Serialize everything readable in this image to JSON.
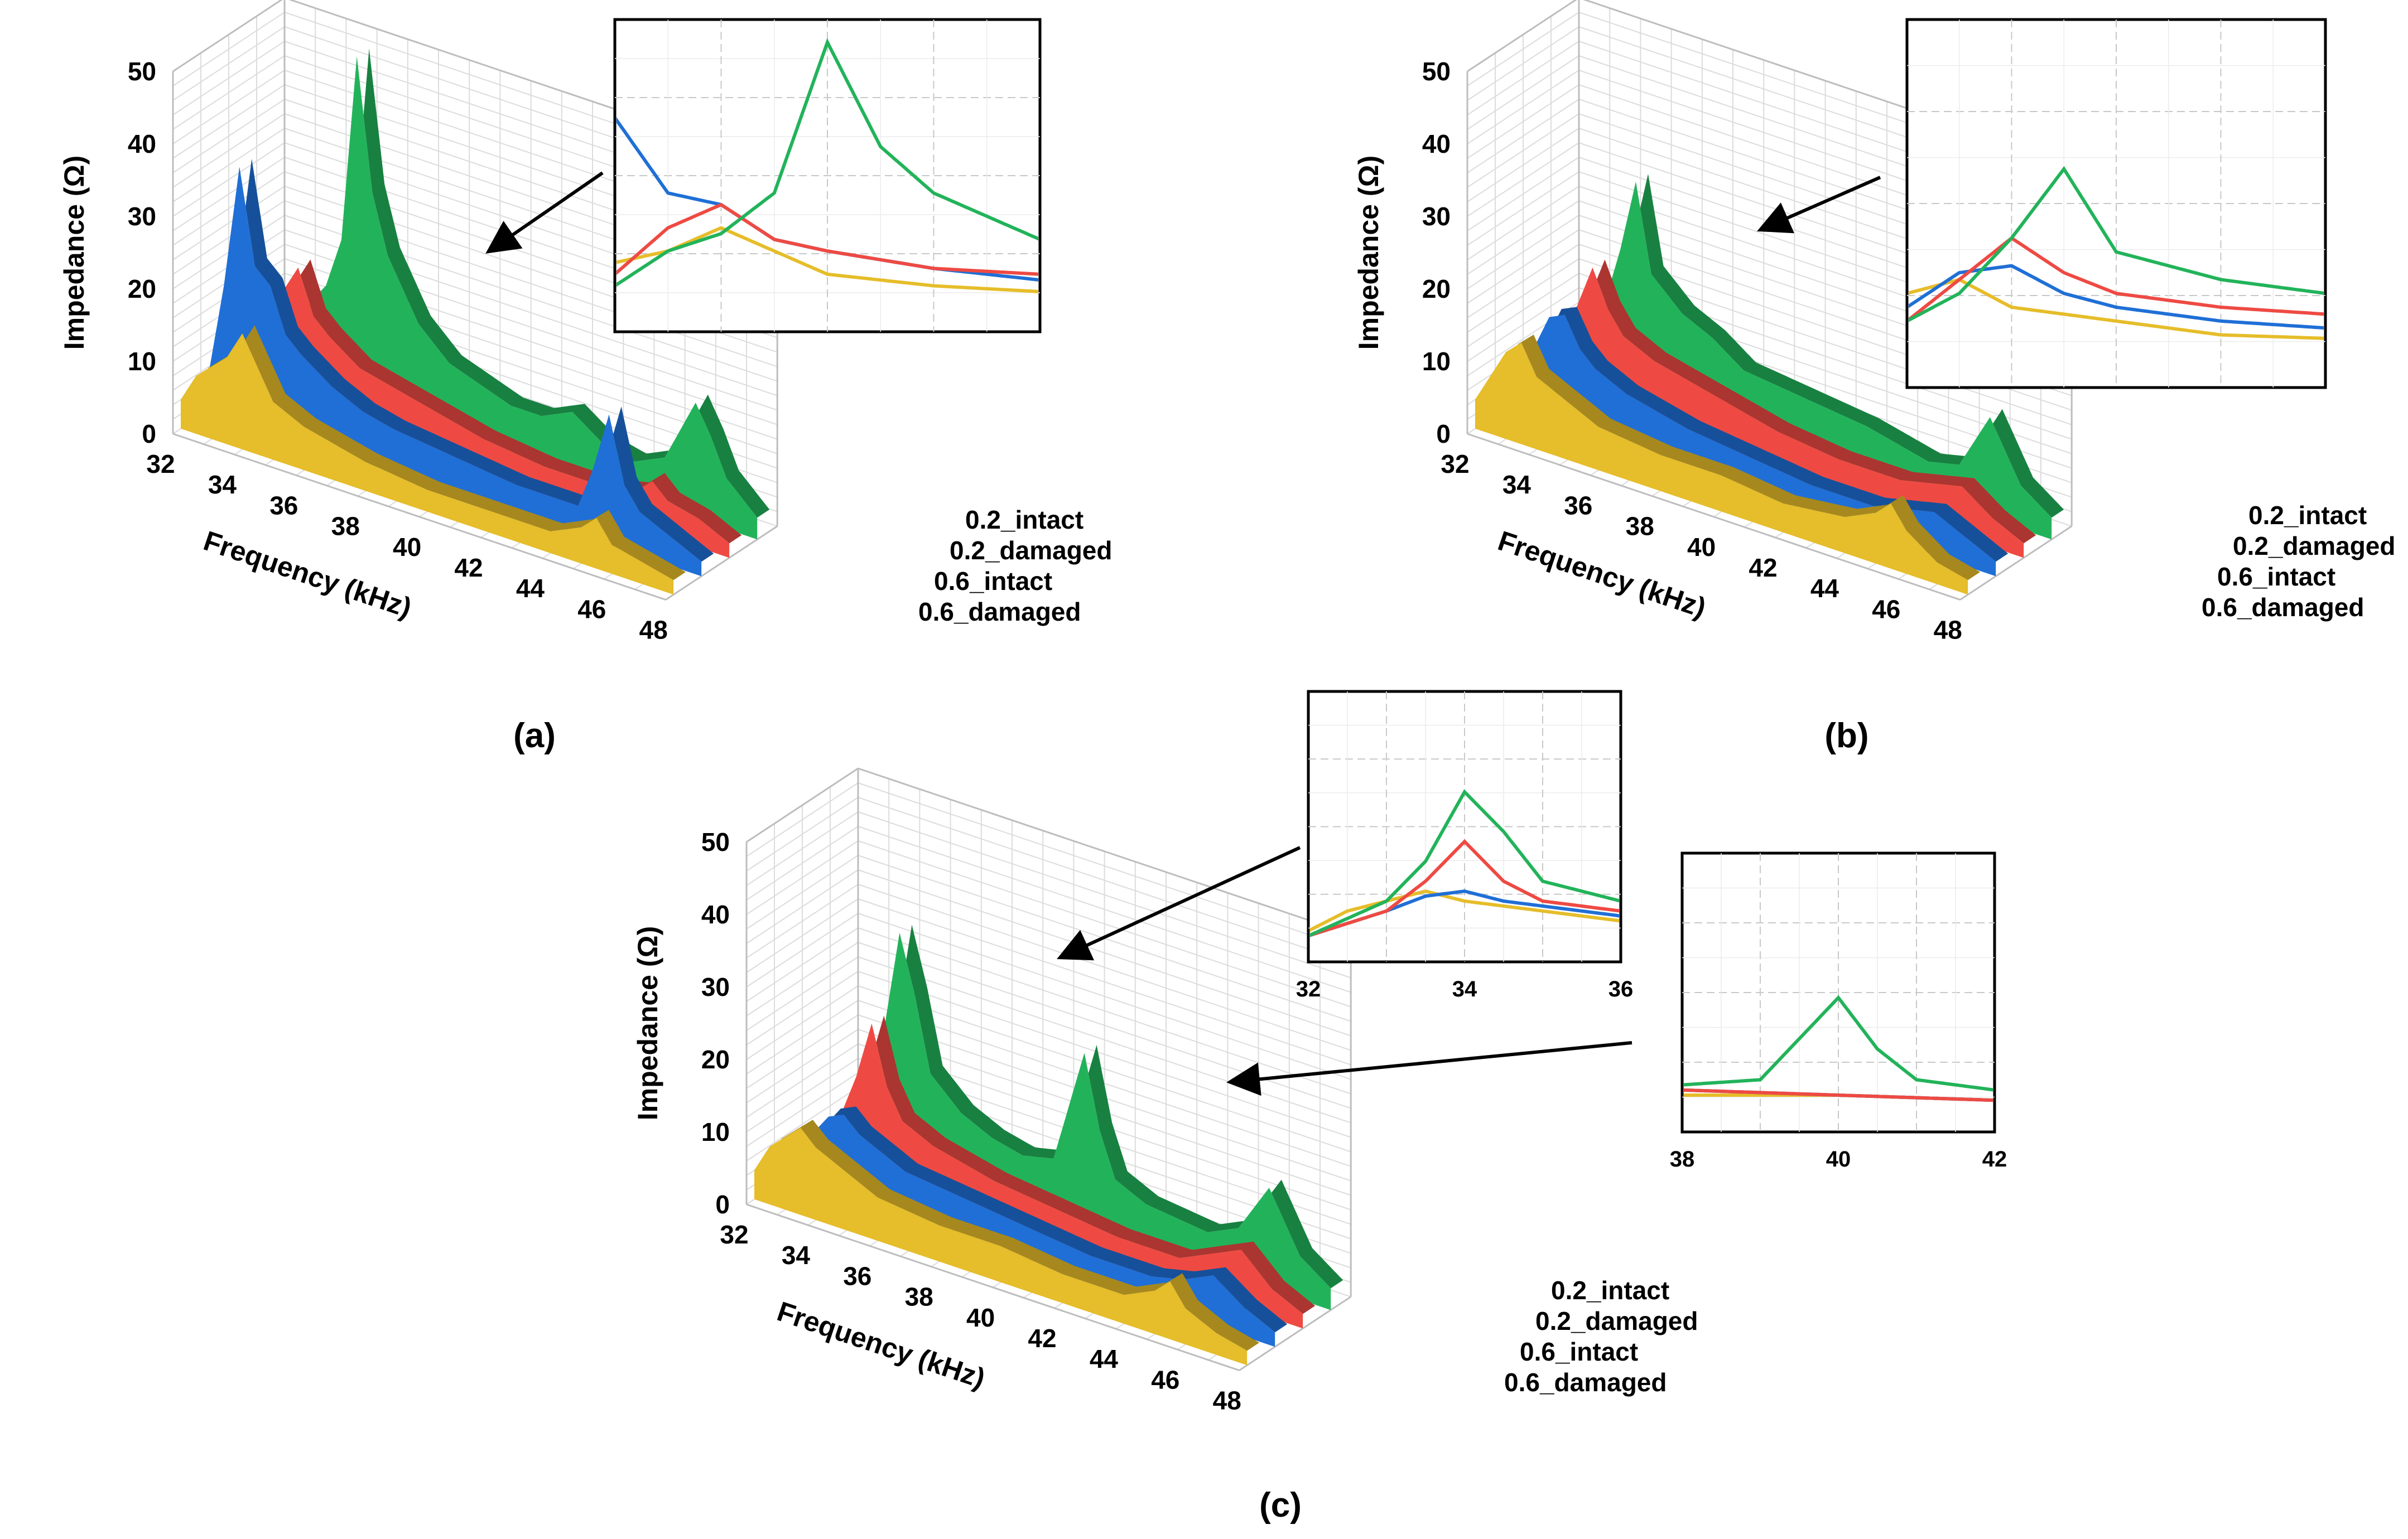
{
  "chart_data": [
    {
      "id": "a",
      "type": "area-3d",
      "panel_label": "(a)",
      "xlabel": "Frequency (kHz)",
      "ylabel": "Impedance (Ω)",
      "xlim": [
        32,
        48
      ],
      "ylim": [
        0,
        50
      ],
      "x_ticks": [
        "32",
        "34",
        "36",
        "38",
        "40",
        "42",
        "44",
        "46",
        "48"
      ],
      "y_ticks": [
        "0",
        "10",
        "20",
        "30",
        "40",
        "50"
      ],
      "depth_labels": [
        "0.2_intact",
        "0.2_damaged",
        "0.6_intact",
        "0.6_damaged"
      ],
      "series": [
        {
          "name": "0.2_intact",
          "color": "#22b35a",
          "x": [
            32,
            33,
            33.5,
            34,
            34.5,
            35,
            35.5,
            36,
            37,
            38,
            40,
            41,
            42,
            43,
            44,
            45,
            46,
            46.5,
            47,
            48
          ],
          "values": [
            3,
            6,
            12,
            15,
            22,
            48,
            30,
            22,
            14,
            10,
            7,
            7,
            9,
            6,
            5,
            7,
            16,
            12,
            7,
            3
          ]
        },
        {
          "name": "0.2_damaged",
          "color": "#ee4a43",
          "x": [
            32,
            33,
            33.5,
            34,
            34.5,
            35,
            36,
            37,
            38,
            40,
            42,
            44,
            45,
            45.5,
            46,
            47,
            48
          ],
          "values": [
            3,
            8,
            16,
            20,
            14,
            12,
            9,
            8,
            7,
            5,
            4,
            4,
            5,
            7,
            5,
            4,
            2
          ]
        },
        {
          "name": "0.6_intact",
          "color": "#1f6fd6",
          "x": [
            32,
            32.5,
            33,
            33.5,
            34,
            34.5,
            35,
            36,
            37,
            38,
            40,
            42,
            44,
            44.5,
            45,
            45.5,
            46,
            47,
            48
          ],
          "values": [
            5,
            18,
            35,
            22,
            20,
            14,
            12,
            9,
            7,
            6,
            5,
            4,
            4,
            10,
            18,
            9,
            6,
            4,
            2
          ]
        },
        {
          "name": "0.6_damaged",
          "color": "#e6bd2a",
          "x": [
            32,
            32.5,
            33,
            33.5,
            34,
            35,
            36,
            37,
            38,
            40,
            42,
            44,
            45,
            45.5,
            46,
            47,
            48
          ],
          "values": [
            4,
            8,
            10,
            12,
            16,
            8,
            6,
            5,
            4,
            3,
            3,
            3,
            5,
            7,
            4,
            3,
            2
          ]
        }
      ],
      "inset": {
        "xlim": [
          33,
          37
        ],
        "ylim": [
          0,
          50
        ],
        "x_ticks": [],
        "note": "zoom of first resonance"
      }
    },
    {
      "id": "b",
      "type": "area-3d",
      "panel_label": "(b)",
      "xlabel": "Frequency (kHz)",
      "ylabel": "Impedance (Ω)",
      "xlim": [
        32,
        48
      ],
      "ylim": [
        0,
        50
      ],
      "x_ticks": [
        "32",
        "34",
        "36",
        "38",
        "40",
        "42",
        "44",
        "46",
        "48"
      ],
      "y_ticks": [
        "0",
        "10",
        "20",
        "30",
        "40",
        "50"
      ],
      "depth_labels": [
        "0.2_intact",
        "0.2_damaged",
        "0.6_intact",
        "0.6_damaged"
      ],
      "series": [
        {
          "name": "0.2_intact",
          "color": "#22b35a",
          "x": [
            32,
            33,
            33.5,
            34,
            34.5,
            35,
            36,
            37,
            38,
            40,
            42,
            43,
            44,
            45,
            46,
            46.5,
            47,
            48
          ],
          "values": [
            3,
            8,
            12,
            20,
            30,
            18,
            14,
            12,
            9,
            8,
            7,
            6,
            5,
            6,
            14,
            10,
            6,
            3
          ]
        },
        {
          "name": "0.2_damaged",
          "color": "#ee4a43",
          "x": [
            32,
            33,
            33.5,
            34,
            34.5,
            35,
            36,
            38,
            40,
            42,
            44,
            45,
            46,
            47,
            48
          ],
          "values": [
            3,
            8,
            14,
            20,
            15,
            12,
            10,
            8,
            6,
            5,
            5,
            6,
            7,
            4,
            2
          ]
        },
        {
          "name": "0.6_intact",
          "color": "#1f6fd6",
          "x": [
            32,
            33,
            33.5,
            34,
            34.5,
            35,
            36,
            38,
            40,
            42,
            44,
            45,
            46,
            47,
            48
          ],
          "values": [
            3,
            10,
            15,
            16,
            12,
            10,
            8,
            6,
            5,
            4,
            4,
            5,
            6,
            4,
            2
          ]
        },
        {
          "name": "0.6_damaged",
          "color": "#e6bd2a",
          "x": [
            32,
            32.5,
            33,
            33.5,
            34,
            35,
            36,
            38,
            40,
            42,
            44,
            45,
            45.5,
            46,
            47,
            48
          ],
          "values": [
            4,
            8,
            12,
            14,
            10,
            8,
            6,
            5,
            5,
            4,
            5,
            7,
            9,
            6,
            3,
            2
          ]
        }
      ],
      "inset": {
        "xlim": [
          33,
          37
        ],
        "ylim": [
          0,
          50
        ],
        "x_ticks": [],
        "note": "zoom of first resonance"
      }
    },
    {
      "id": "c",
      "type": "area-3d",
      "panel_label": "(c)",
      "xlabel": "Frequency (kHz)",
      "ylabel": "Impedance (Ω)",
      "xlim": [
        32,
        48
      ],
      "ylim": [
        0,
        50
      ],
      "x_ticks": [
        "32",
        "34",
        "36",
        "38",
        "40",
        "42",
        "44",
        "46",
        "48"
      ],
      "y_ticks": [
        "0",
        "10",
        "20",
        "30",
        "40",
        "50"
      ],
      "depth_labels": [
        "0.2_intact",
        "0.2_damaged",
        "0.6_intact",
        "0.6_damaged"
      ],
      "series": [
        {
          "name": "0.2_intact",
          "color": "#22b35a",
          "x": [
            32,
            33,
            33.5,
            34,
            34.5,
            35,
            36,
            37,
            38,
            39,
            39.5,
            40,
            40.5,
            41,
            42,
            44,
            45,
            46,
            46.5,
            47,
            48
          ],
          "values": [
            3,
            10,
            18,
            32,
            24,
            14,
            10,
            8,
            7,
            8,
            16,
            24,
            14,
            8,
            6,
            5,
            7,
            14,
            10,
            6,
            3
          ]
        },
        {
          "name": "0.2_damaged",
          "color": "#ee4a43",
          "x": [
            32,
            33,
            33.5,
            34,
            34.5,
            35,
            36,
            38,
            40,
            42,
            44,
            45,
            46,
            47,
            48
          ],
          "values": [
            3,
            8,
            14,
            22,
            14,
            10,
            8,
            6,
            5,
            4,
            4,
            6,
            8,
            4,
            2
          ]
        },
        {
          "name": "0.6_intact",
          "color": "#1f6fd6",
          "x": [
            32,
            33,
            33.5,
            34,
            34.5,
            35,
            36,
            38,
            40,
            42,
            44,
            45,
            46,
            47,
            48
          ],
          "values": [
            3,
            8,
            11,
            12,
            10,
            9,
            7,
            6,
            5,
            4,
            4,
            5,
            7,
            4,
            2
          ]
        },
        {
          "name": "0.6_damaged",
          "color": "#e6bd2a",
          "x": [
            32,
            32.5,
            33,
            33.5,
            34,
            35,
            36,
            38,
            40,
            42,
            44,
            45,
            45.5,
            46,
            47,
            48
          ],
          "values": [
            4,
            8,
            10,
            12,
            10,
            8,
            6,
            5,
            5,
            4,
            4,
            6,
            8,
            5,
            3,
            2
          ]
        }
      ],
      "inset": {
        "xlim": [
          32,
          36
        ],
        "ylim": [
          0,
          50
        ],
        "x_ticks": [
          "32",
          "34",
          "36"
        ],
        "note": "zoom of first resonance"
      },
      "inset2": {
        "xlim": [
          38,
          42
        ],
        "ylim": [
          0,
          50
        ],
        "x_ticks": [
          "38",
          "40",
          "42"
        ],
        "note": "zoom of second resonance"
      }
    }
  ]
}
